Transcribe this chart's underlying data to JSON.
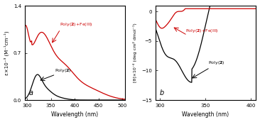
{
  "panel_a": {
    "xlim": [
      295,
      505
    ],
    "ylim": [
      0,
      1.4
    ],
    "yticks": [
      0,
      0.7,
      1.4
    ],
    "xticks": [
      300,
      350,
      400,
      450,
      500
    ],
    "xlabel": "Wavelength (nm)",
    "ylabel": "ε×10⁻³ (M⁻¹cm⁻¹)",
    "label": "a",
    "poly2_color": "black",
    "fe_color": "#cc0000"
  },
  "panel_b": {
    "xlim": [
      295,
      405
    ],
    "ylim": [
      -15,
      1
    ],
    "yticks": [
      -15,
      -10,
      -5,
      0
    ],
    "xticks": [
      300,
      350,
      400
    ],
    "xlabel": "Wavelength (nm)",
    "ylabel": "[θ]×10⁻⁴ (deg cm² dmol⁻¹)",
    "label": "b",
    "poly2_color": "black",
    "fe_color": "#cc0000"
  }
}
